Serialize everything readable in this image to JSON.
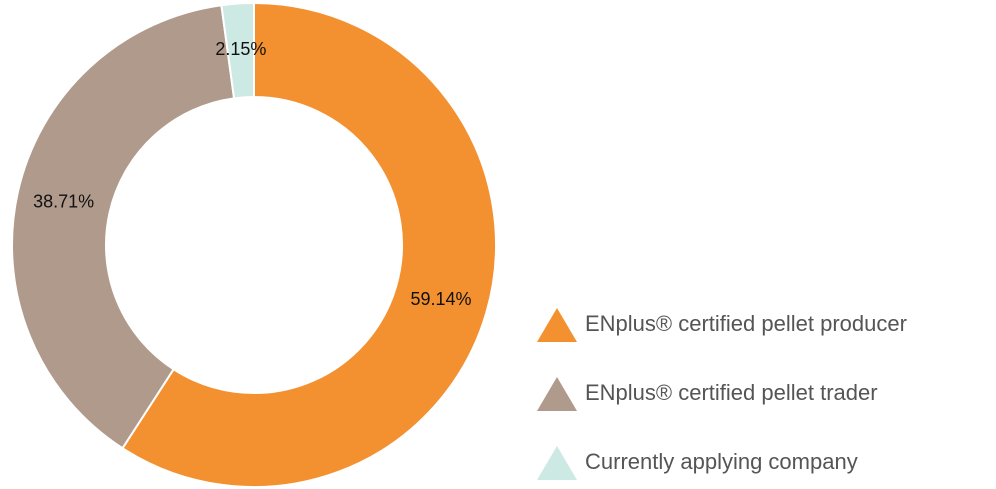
{
  "chart_data": {
    "type": "donut",
    "categories": [
      "ENplus® certified pellet producer",
      "ENplus® certified pellet trader",
      "Currently applying company"
    ],
    "values": [
      59.14,
      38.71,
      2.15
    ],
    "value_labels": [
      "59.14%",
      "38.71%",
      "2.15%"
    ],
    "colors": [
      "#f39030",
      "#b09a8c",
      "#cde9e4"
    ],
    "legend": "right"
  }
}
